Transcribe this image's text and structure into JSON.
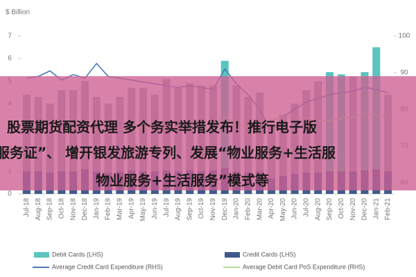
{
  "chart_data": {
    "type": "bar_line",
    "y_label": "$ Billion",
    "categories": [
      "Jul-18",
      "Aug-18",
      "Sep-18",
      "Oct-18",
      "Nov-18",
      "Dec-18",
      "Jan-19",
      "Feb-19",
      "Mar-19",
      "Apr-19",
      "May-19",
      "Jun-19",
      "Jul-19",
      "Aug-19",
      "Sep-19",
      "Oct-19",
      "Nov-19",
      "Dec-19",
      "Jan-20",
      "Feb-20",
      "Mar-20",
      "Apr-20",
      "May-20",
      "Jun-20",
      "Jul-20",
      "Aug-20",
      "Sep-20",
      "Oct-20",
      "Nov-20",
      "Dec-20",
      "Jan-21",
      "Feb-21"
    ],
    "ylim": [
      0,
      7
    ],
    "yticks": [
      0,
      1,
      2,
      3,
      4,
      5,
      6,
      7
    ],
    "y2lim": [
      57,
      100
    ],
    "y2ticks": [
      60,
      70,
      80,
      90,
      100
    ],
    "series": [
      {
        "name": "Credit Cards (LHS)",
        "kind": "bar",
        "color": "#3f5b8c",
        "values": [
          1.0,
          1.0,
          0.95,
          1.0,
          1.0,
          1.1,
          1.0,
          0.95,
          1.0,
          1.05,
          1.0,
          1.0,
          1.05,
          1.0,
          1.05,
          1.0,
          1.05,
          1.15,
          1.0,
          0.95,
          1.0,
          0.7,
          0.8,
          0.9,
          0.95,
          0.95,
          1.0,
          1.0,
          1.0,
          1.05,
          1.1,
          1.0
        ]
      },
      {
        "name": "Debit Cards (LHS)",
        "kind": "bar",
        "color": "#5cc4c0",
        "colors": [
          "#9ca7b8",
          "#9ca7b8",
          "#9ca7b8",
          "#9ca7b8",
          "#9ca7b8",
          "#9ca7b8",
          "#9ca7b8",
          "#9ca7b8",
          "#9ca7b8",
          "#9ca7b8",
          "#9ca7b8",
          "#9ca7b8",
          "#9ca7b8",
          "#9ca7b8",
          "#9ca7b8",
          "#9ca7b8",
          "#9ca7b8",
          "#5cc4c0",
          "#9ca7b8",
          "#9ca7b8",
          "#9ca7b8",
          "#9ca7b8",
          "#9ca7b8",
          "#9ca7b8",
          "#9ca7b8",
          "#9ca7b8",
          "#5cc4c0",
          "#5cc4c0",
          "#9ca7b8",
          "#5cc4c0",
          "#5cc4c0",
          "#9ca7b8"
        ],
        "values": [
          3.4,
          3.3,
          3.05,
          3.6,
          3.6,
          3.9,
          3.3,
          3.05,
          3.3,
          3.65,
          3.7,
          3.4,
          4.05,
          3.7,
          3.85,
          3.8,
          3.75,
          4.75,
          3.8,
          3.35,
          3.5,
          2.3,
          2.7,
          3.1,
          3.65,
          4.05,
          4.4,
          4.3,
          4.2,
          4.35,
          5.4,
          3.4
        ]
      },
      {
        "name": "Average Credit Card Expenditure (RHS)",
        "kind": "line",
        "axis": "y2",
        "color": "#4a7ab8",
        "values": [
          88.5,
          89,
          90.5,
          88,
          89.5,
          88.5,
          92.5,
          89,
          88.5,
          88,
          87.5,
          87,
          86.5,
          86,
          86.5,
          86,
          85.5,
          91,
          87,
          84,
          80,
          74,
          78,
          80,
          82,
          83,
          84,
          84.5,
          85,
          86,
          85.5,
          84.5
        ]
      },
      {
        "name": "Average Debit Card PoS Expenditure (RHS)",
        "kind": "line",
        "axis": "y2",
        "color": "#b5d99a",
        "values": [
          74,
          74.5,
          75,
          74,
          75,
          76,
          74,
          74,
          74.5,
          75,
          75,
          75,
          75.5,
          75,
          75.5,
          76,
          76,
          78,
          76,
          75,
          76,
          77,
          78,
          78,
          77.5,
          77,
          77,
          77.5,
          78,
          79,
          78.5,
          78
        ]
      }
    ]
  },
  "overlay": {
    "lines": [
      "股票期货配资代理 多个务实举措发布！推行电子版",
      "服务证”、 增开银发旅游专列、发展“物业服务+生活服",
      "物业服务+生活服务”模式等"
    ]
  }
}
